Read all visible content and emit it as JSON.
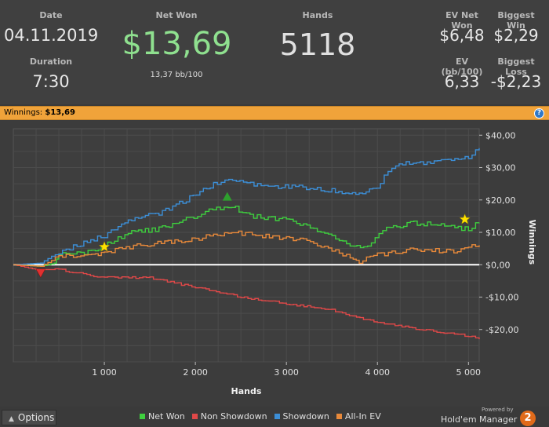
{
  "stats": {
    "date": {
      "label": "Date",
      "value": "04.11.2019"
    },
    "duration": {
      "label": "Duration",
      "value": "7:30"
    },
    "net_won": {
      "label": "Net Won",
      "value": "$13,69",
      "sub": "13,37 bb/100"
    },
    "hands": {
      "label": "Hands",
      "value": "5118"
    },
    "ev_net_won": {
      "label": "EV Net Won",
      "value": "$6,48"
    },
    "biggest_win": {
      "label": "Biggest Win",
      "value": "$2,29"
    },
    "ev_bb100": {
      "label": "EV (bb/100)",
      "value": "6,33"
    },
    "biggest_loss": {
      "label": "Biggest Loss",
      "value": "-$2,23"
    }
  },
  "winnings_bar": {
    "label": "Winnings:",
    "value": "$13,69",
    "help_icon": "?"
  },
  "footer": {
    "options_label": "Options",
    "powered_by": "Powered by",
    "brand": "Hold'em Manager",
    "brand_number": "2"
  },
  "colors": {
    "net_won": "#3ecf3e",
    "non_showdown": "#e04848",
    "showdown": "#3c8ed6",
    "allin_ev": "#e8893a",
    "accent": "#f0a33a",
    "net_won_text": "#8fe08f"
  },
  "chart_data": {
    "type": "line",
    "xlabel": "Hands",
    "ylabel": "Winnings",
    "xlim": [
      0,
      5118
    ],
    "ylim": [
      -30,
      42
    ],
    "x_ticks": [
      1000,
      2000,
      3000,
      4000,
      5000
    ],
    "x_tick_labels": [
      "1 000",
      "2 000",
      "3 000",
      "4 000",
      "5 000"
    ],
    "y_ticks": [
      40,
      30,
      20,
      10,
      0,
      -10,
      -20
    ],
    "y_tick_labels": [
      "$40,00",
      "$30,00",
      "$20,00",
      "$10,00",
      "$0,00",
      "-$10,00",
      "-$20,00"
    ],
    "legend_position": "bottom",
    "series": [
      {
        "name": "Net Won",
        "x": [
          0,
          300,
          450,
          500,
          900,
          1000,
          1300,
          1600,
          1900,
          2150,
          2400,
          2600,
          3000,
          3300,
          3700,
          3850,
          4100,
          4400,
          4700,
          5000,
          5118
        ],
        "y": [
          0,
          -0.5,
          0.5,
          3,
          4,
          6,
          10,
          11,
          14,
          17,
          18,
          15,
          14,
          11,
          6,
          5,
          11,
          13,
          12,
          11,
          13
        ]
      },
      {
        "name": "Non Showdown",
        "x": [
          0,
          250,
          500,
          1000,
          1500,
          2000,
          2500,
          3000,
          3500,
          4000,
          4500,
          5000,
          5118
        ],
        "y": [
          0,
          -1.5,
          -1.5,
          -4,
          -4,
          -7,
          -10,
          -12,
          -14,
          -18,
          -20,
          -22,
          -23
        ]
      },
      {
        "name": "Showdown",
        "x": [
          0,
          300,
          500,
          700,
          1000,
          1300,
          1600,
          1900,
          2200,
          2450,
          2800,
          3100,
          3500,
          3800,
          3950,
          4200,
          4700,
          5000,
          5118
        ],
        "y": [
          0,
          0.5,
          4,
          6,
          9,
          14,
          16,
          20,
          25,
          26,
          24,
          24,
          23,
          22,
          23,
          31,
          32,
          33,
          36
        ]
      },
      {
        "name": "All-In EV",
        "x": [
          0,
          300,
          500,
          900,
          1000,
          1400,
          1700,
          2000,
          2400,
          2700,
          3000,
          3300,
          3700,
          3800,
          4000,
          4400,
          4800,
          5118
        ],
        "y": [
          0,
          -0.5,
          2.5,
          3,
          4,
          6,
          7,
          8,
          10,
          9,
          8,
          7,
          2,
          1,
          3,
          5,
          4,
          6
        ]
      }
    ],
    "markers": [
      {
        "type": "star",
        "color": "#ffe100",
        "x": 1000,
        "y": 5.5
      },
      {
        "type": "star",
        "color": "#ffe100",
        "x": 4960,
        "y": 14
      },
      {
        "type": "triangle-up",
        "color": "#2ea02e",
        "x": 2350,
        "y": 21
      },
      {
        "type": "triangle-down",
        "color": "#e03030",
        "x": 300,
        "y": -2.5
      }
    ]
  }
}
